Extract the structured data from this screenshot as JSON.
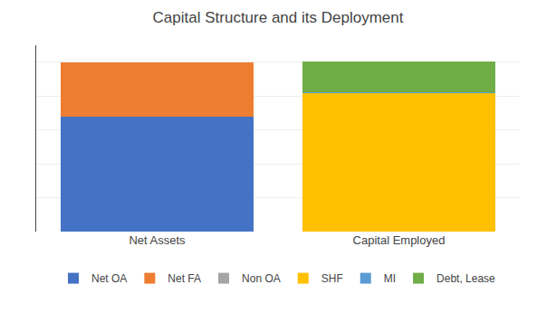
{
  "chart_data": {
    "type": "bar",
    "title": "Capital Structure and its Deployment",
    "categories": [
      "Net Assets",
      "Capital Employed"
    ],
    "series": [
      {
        "name": "Net OA",
        "color": "#4472C4",
        "values": [
          68,
          0
        ]
      },
      {
        "name": "Net FA",
        "color": "#ED7D31",
        "values": [
          32,
          0
        ]
      },
      {
        "name": "Non OA",
        "color": "#A5A5A5",
        "values": [
          0,
          0
        ]
      },
      {
        "name": "SHF",
        "color": "#FFC000",
        "values": [
          0,
          82
        ]
      },
      {
        "name": "MI",
        "color": "#5B9BD5",
        "values": [
          0,
          0.5
        ]
      },
      {
        "name": "Debt, Lease",
        "color": "#70AD47",
        "values": [
          0,
          18
        ]
      }
    ],
    "stacked": true,
    "ylim": [
      0,
      110
    ],
    "yticks": [
      20,
      40,
      60,
      80,
      100
    ],
    "grid": true,
    "tick_labels": "x",
    "legend": "bottom"
  }
}
